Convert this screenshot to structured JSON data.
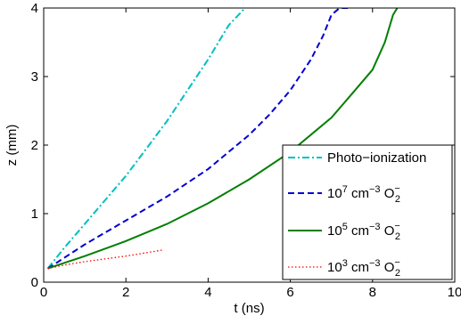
{
  "chart_data": {
    "type": "line",
    "xlabel": "t (ns)",
    "ylabel": "z (mm)",
    "xlim": [
      0,
      10
    ],
    "ylim": [
      0,
      4
    ],
    "x_ticks": [
      "0",
      "2",
      "4",
      "6",
      "8",
      "10"
    ],
    "y_ticks": [
      "0",
      "1",
      "2",
      "3",
      "4"
    ],
    "grid": false,
    "legend_position": "lower-right",
    "series": [
      {
        "name": "Photo−ionization",
        "legend": {
          "pre": "Photo−ionization",
          "sup": "",
          "unit": "",
          "species": "",
          "sup2": "",
          "sub": ""
        },
        "color": "#00bfbf",
        "style": "dash-dot",
        "x": [
          0.1,
          0.5,
          1.0,
          1.5,
          2.0,
          2.5,
          3.0,
          3.5,
          4.0,
          4.5,
          4.9
        ],
        "y": [
          0.2,
          0.5,
          0.85,
          1.2,
          1.55,
          1.95,
          2.35,
          2.8,
          3.25,
          3.75,
          4.0
        ]
      },
      {
        "name": "10^7 cm^-3 O2^-",
        "legend": {
          "pre": "10",
          "sup": "7",
          "unit": " cm",
          "species": "O",
          "sup2": "−",
          "sub": "2",
          "supunit": "−3"
        },
        "color": "#0000d0",
        "style": "dashed",
        "x": [
          0.1,
          1.0,
          2.0,
          3.0,
          4.0,
          5.0,
          5.5,
          6.0,
          6.5,
          6.8,
          7.0,
          7.2,
          7.4
        ],
        "y": [
          0.2,
          0.55,
          0.9,
          1.25,
          1.65,
          2.15,
          2.45,
          2.8,
          3.25,
          3.6,
          3.9,
          4.0,
          4.0
        ]
      },
      {
        "name": "10^5 cm^-3 O2^-",
        "legend": {
          "pre": "10",
          "sup": "5",
          "unit": " cm",
          "species": "O",
          "sup2": "−",
          "sub": "2",
          "supunit": "−3"
        },
        "color": "#007f00",
        "style": "solid",
        "x": [
          0.1,
          1.0,
          2.0,
          3.0,
          4.0,
          5.0,
          6.0,
          7.0,
          7.5,
          8.0,
          8.3,
          8.5,
          8.6
        ],
        "y": [
          0.2,
          0.38,
          0.6,
          0.85,
          1.15,
          1.5,
          1.9,
          2.4,
          2.75,
          3.1,
          3.5,
          3.9,
          4.0
        ]
      },
      {
        "name": "10^3 cm^-3 O2^-",
        "legend": {
          "pre": "10",
          "sup": "3",
          "unit": " cm",
          "species": "O",
          "sup2": "−",
          "sub": "2",
          "supunit": "−3"
        },
        "color": "#ff0000",
        "style": "dotted",
        "x": [
          0.1,
          0.5,
          1.0,
          1.5,
          2.0,
          2.5,
          2.9
        ],
        "y": [
          0.2,
          0.25,
          0.3,
          0.34,
          0.38,
          0.43,
          0.47
        ]
      }
    ]
  }
}
